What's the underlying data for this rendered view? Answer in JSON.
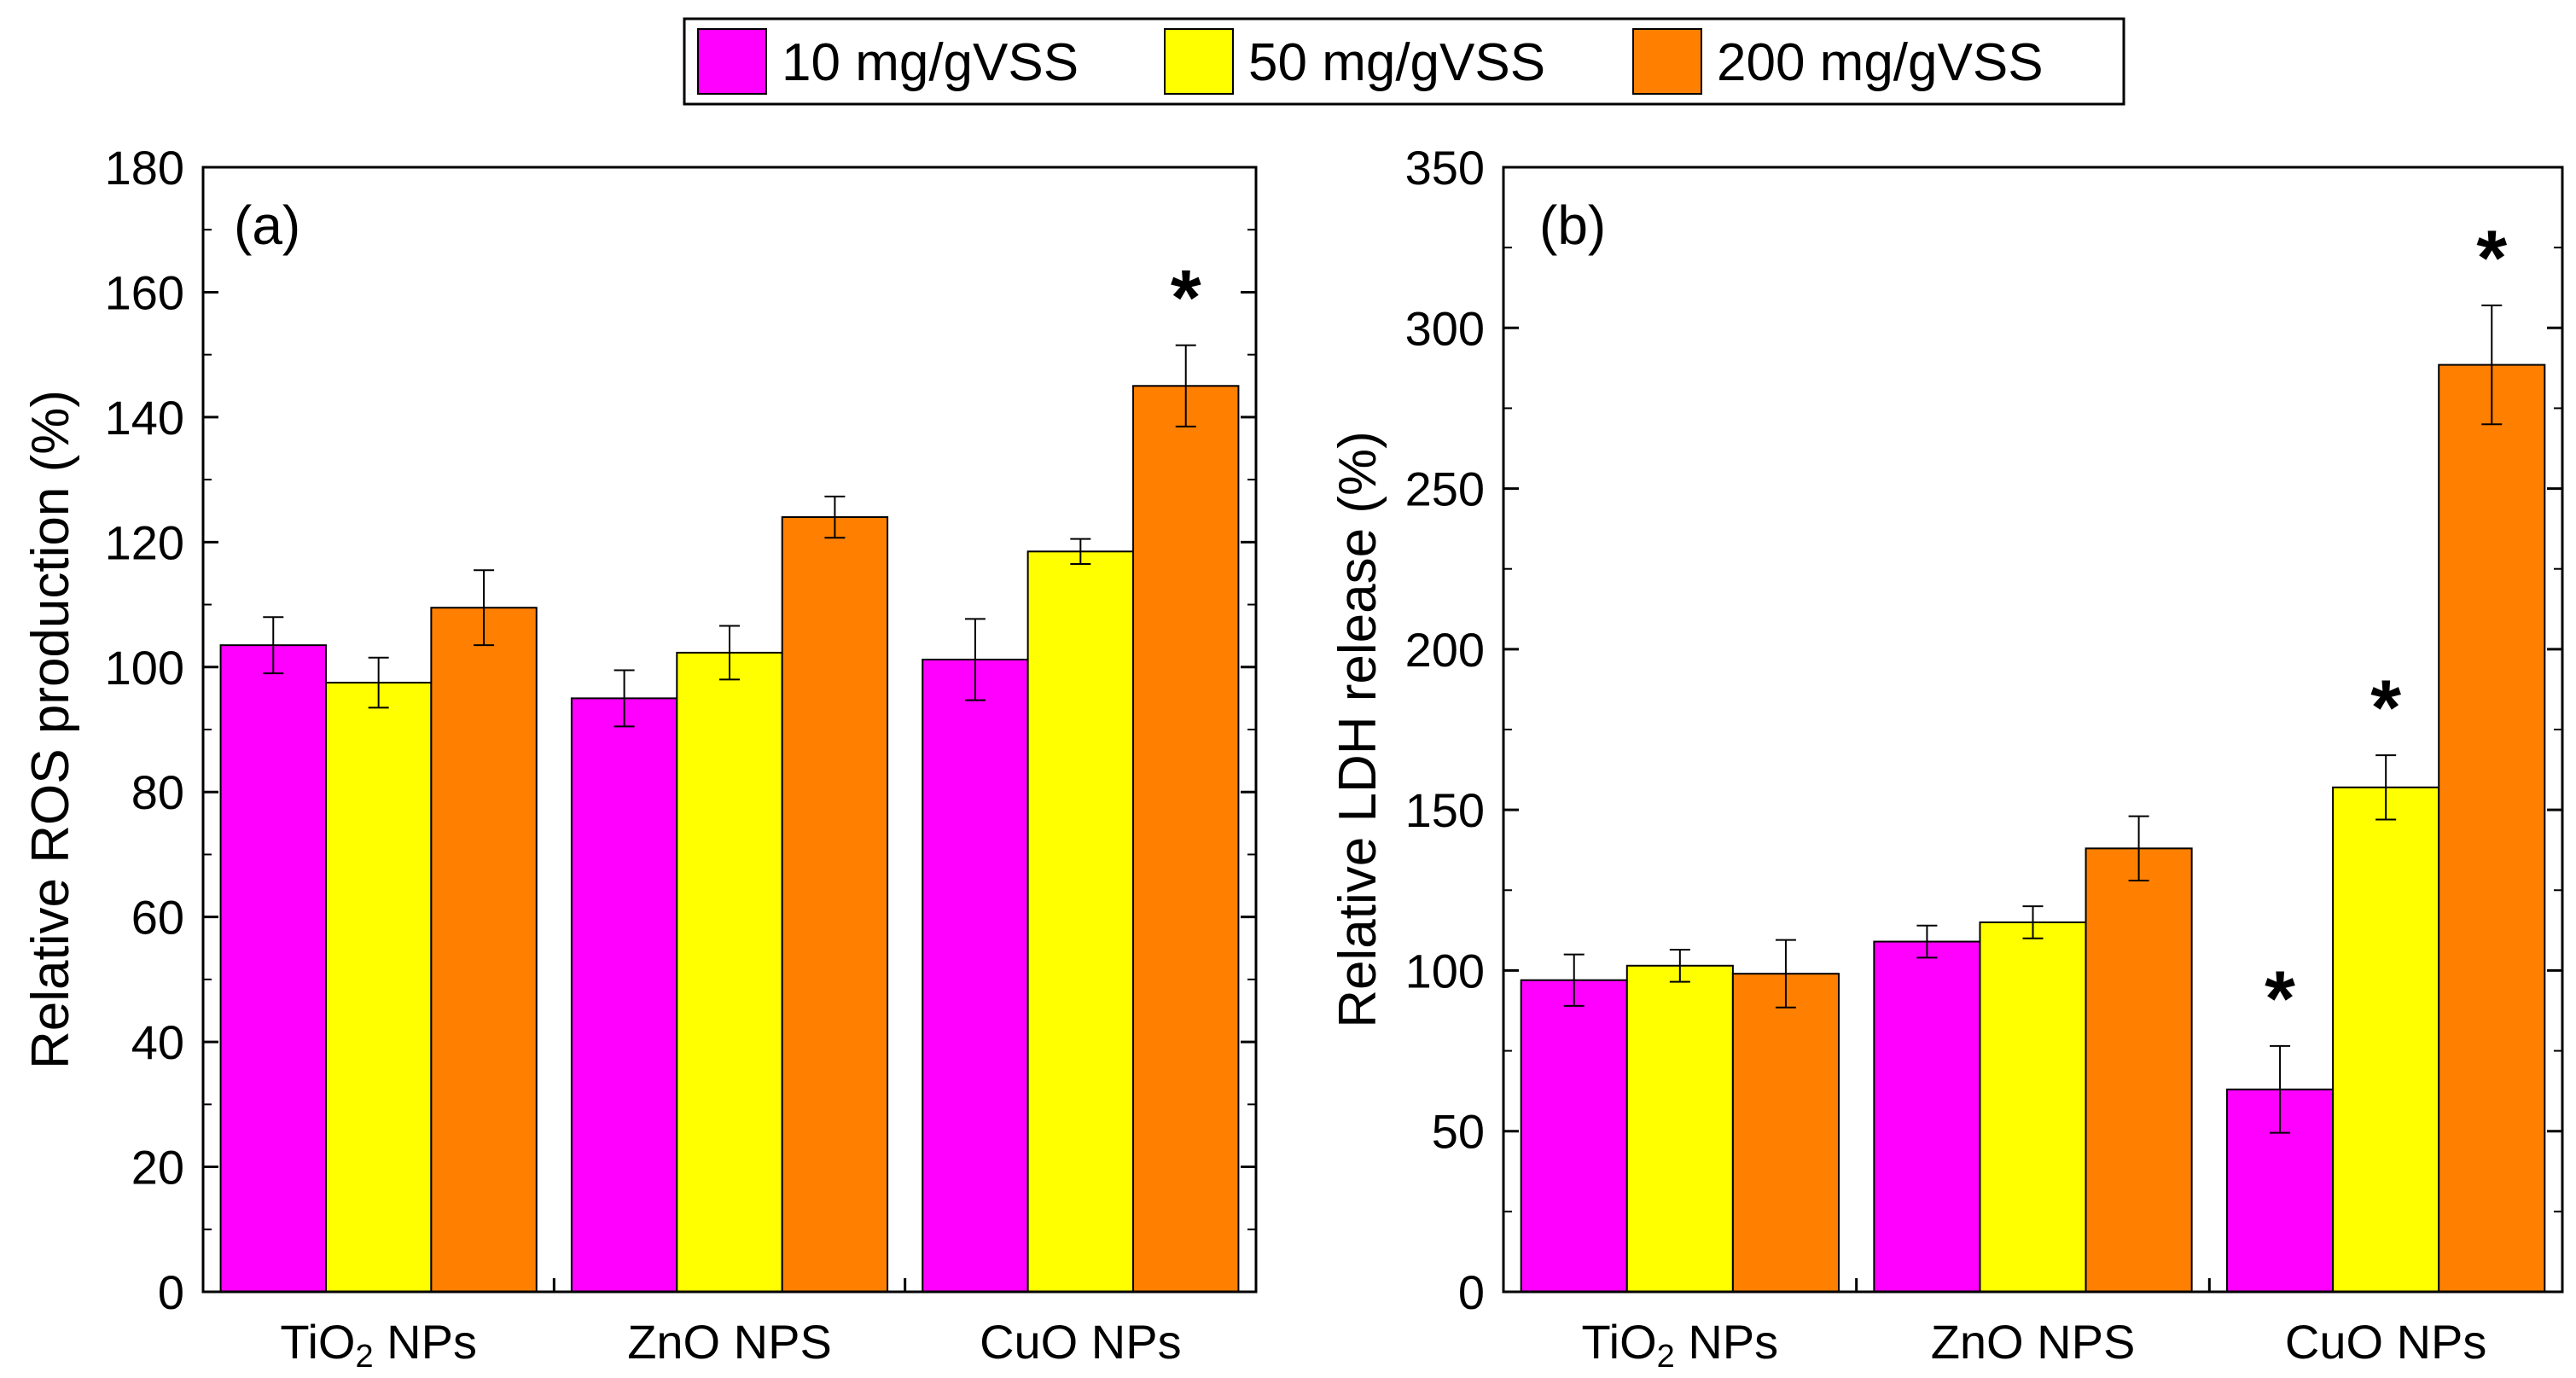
{
  "legend": {
    "entries": [
      {
        "label": "10 mg/gVSS",
        "color": "#ff00ff"
      },
      {
        "label": "50 mg/gVSS",
        "color": "#ffff00"
      },
      {
        "label": "200 mg/gVSS",
        "color": "#ff8000"
      }
    ]
  },
  "chart_data": [
    {
      "type": "bar",
      "panel_label": "(a)",
      "title": "",
      "xlabel": "",
      "ylabel": "Relative ROS production (%)",
      "categories": [
        {
          "label": "TiO",
          "subscript": "2",
          "suffix": " NPs"
        },
        {
          "label": "ZnO NPS",
          "subscript": "",
          "suffix": ""
        },
        {
          "label": "CuO NPs",
          "subscript": "",
          "suffix": ""
        }
      ],
      "ylim": [
        0,
        180
      ],
      "yticks": [
        0,
        20,
        40,
        60,
        80,
        100,
        120,
        140,
        160,
        180
      ],
      "minor_step": 10,
      "series": [
        {
          "name": "10 mg/gVSS",
          "color": "#ff00ff",
          "values": [
            103.5,
            95,
            101.2
          ],
          "errors": [
            4.5,
            4.5,
            6.5
          ],
          "significant": [
            false,
            false,
            false
          ]
        },
        {
          "name": "50 mg/gVSS",
          "color": "#ffff00",
          "values": [
            97.5,
            102.3,
            118.5
          ],
          "errors": [
            4,
            4.3,
            2
          ],
          "significant": [
            false,
            false,
            false
          ]
        },
        {
          "name": "200 mg/gVSS",
          "color": "#ff8000",
          "values": [
            109.5,
            124,
            145
          ],
          "errors": [
            6,
            3.3,
            6.5
          ],
          "significant": [
            false,
            false,
            true
          ]
        }
      ],
      "significance_marker": "*"
    },
    {
      "type": "bar",
      "panel_label": "(b)",
      "title": "",
      "xlabel": "",
      "ylabel": "Relative LDH release (%)",
      "categories": [
        {
          "label": "TiO",
          "subscript": "2",
          "suffix": " NPs"
        },
        {
          "label": "ZnO NPS",
          "subscript": "",
          "suffix": ""
        },
        {
          "label": "CuO NPs",
          "subscript": "",
          "suffix": ""
        }
      ],
      "ylim": [
        0,
        350
      ],
      "yticks": [
        0,
        50,
        100,
        150,
        200,
        250,
        300,
        350
      ],
      "minor_step": 25,
      "series": [
        {
          "name": "10 mg/gVSS",
          "color": "#ff00ff",
          "values": [
            97,
            109,
            63
          ],
          "errors": [
            8,
            5,
            13.5
          ],
          "significant": [
            false,
            false,
            true
          ]
        },
        {
          "name": "50 mg/gVSS",
          "color": "#ffff00",
          "values": [
            101.5,
            115,
            157
          ],
          "errors": [
            5,
            5,
            10
          ],
          "significant": [
            false,
            false,
            true
          ]
        },
        {
          "name": "200 mg/gVSS",
          "color": "#ff8000",
          "values": [
            99,
            138,
            288.5
          ],
          "errors": [
            10.5,
            10,
            18.5
          ],
          "significant": [
            false,
            false,
            true
          ]
        }
      ],
      "significance_marker": "*"
    }
  ]
}
